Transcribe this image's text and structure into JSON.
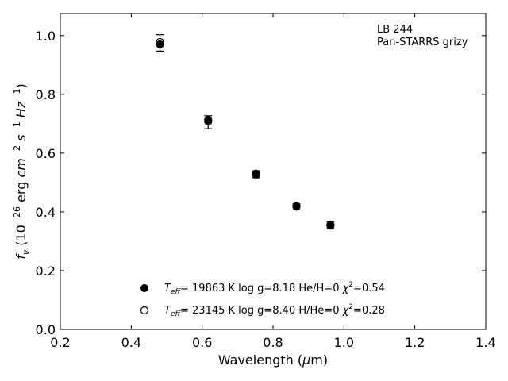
{
  "chart_data": {
    "type": "scatter",
    "xlabel": "Wavelength (μm)",
    "ylabel": "f_ν (10^-26 erg cm^-2 s^-1 Hz^-1)",
    "xlim": [
      0.2,
      1.4
    ],
    "ylim": [
      0.0,
      1.075
    ],
    "xticks": [
      0.2,
      0.4,
      0.6,
      0.8,
      1.0,
      1.2,
      1.4
    ],
    "yticks": [
      0.0,
      0.2,
      0.4,
      0.6,
      0.8,
      1.0
    ],
    "xtick_labels": [
      "0.2",
      "0.4",
      "0.6",
      "0.8",
      "1.0",
      "1.2",
      "1.4"
    ],
    "ytick_labels": [
      "0.0",
      "0.2",
      "0.4",
      "0.6",
      "0.8",
      "1.0"
    ],
    "grid": false,
    "annotations": [
      "LB 244",
      "Pan-STARRS grizy"
    ],
    "observed": {
      "x": [
        0.481,
        0.617,
        0.752,
        0.866,
        0.962
      ],
      "y": [
        0.975,
        0.705,
        0.528,
        0.417,
        0.355
      ],
      "yerr": [
        0.028,
        0.022,
        0.012,
        0.01,
        0.012
      ]
    },
    "series": [
      {
        "marker": "filled",
        "label": "T_eff= 19863 K  log g=8.18  He/H=0  χ²=0.54",
        "x": [
          0.481,
          0.617,
          0.752,
          0.866,
          0.962
        ],
        "y": [
          0.97,
          0.712,
          0.53,
          0.42,
          0.353
        ]
      },
      {
        "marker": "open",
        "label": "T_eff= 23145 K  log g=8.40  H/He=0  χ²=0.28",
        "x": [
          0.481,
          0.617,
          0.752,
          0.866,
          0.962
        ],
        "y": [
          0.978,
          0.708,
          0.527,
          0.418,
          0.356
        ]
      }
    ],
    "legend": [
      {
        "marker": "filled",
        "teff": "19863",
        "logg": "8.18",
        "ratio": "He/H=0",
        "chi2": "0.54"
      },
      {
        "marker": "open",
        "teff": "23145",
        "logg": "8.40",
        "ratio": "H/He=0",
        "chi2": "0.28"
      }
    ],
    "legend_loc": "lower center"
  }
}
